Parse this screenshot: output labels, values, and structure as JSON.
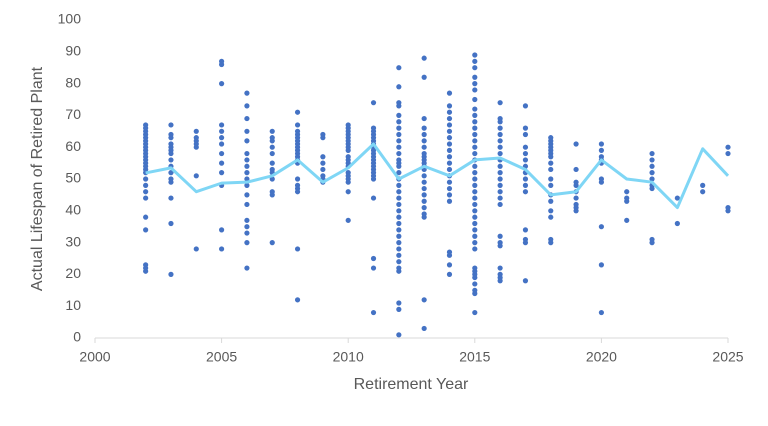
{
  "chart_data": {
    "type": "scatter",
    "x_label": "Retirement Year",
    "y_label": "Actual Lifespan of Retired Plant",
    "xlim": [
      2000,
      2025
    ],
    "xticks": [
      2000,
      2005,
      2010,
      2015,
      2020,
      2025
    ],
    "ylim": [
      0,
      100
    ],
    "yticks": [
      0,
      10,
      20,
      30,
      40,
      50,
      60,
      70,
      80,
      90,
      100
    ],
    "grid": false,
    "series": [
      {
        "type": "scatter",
        "color": "#4472c4",
        "x": [
          2002,
          2002,
          2002,
          2002,
          2002,
          2002,
          2002,
          2002,
          2002,
          2002,
          2002,
          2002,
          2002,
          2002,
          2002,
          2002,
          2002,
          2002,
          2002,
          2002,
          2002,
          2002,
          2002,
          2002,
          2002,
          2003,
          2003,
          2003,
          2003,
          2003,
          2003,
          2003,
          2003,
          2003,
          2003,
          2003,
          2003,
          2003,
          2003,
          2003,
          2004,
          2004,
          2004,
          2004,
          2004,
          2004,
          2004,
          2005,
          2005,
          2005,
          2005,
          2005,
          2005,
          2005,
          2005,
          2005,
          2005,
          2005,
          2005,
          2005,
          2006,
          2006,
          2006,
          2006,
          2006,
          2006,
          2006,
          2006,
          2006,
          2006,
          2006,
          2006,
          2006,
          2006,
          2006,
          2006,
          2006,
          2006,
          2007,
          2007,
          2007,
          2007,
          2007,
          2007,
          2007,
          2007,
          2007,
          2007,
          2007,
          2007,
          2008,
          2008,
          2008,
          2008,
          2008,
          2008,
          2008,
          2008,
          2008,
          2008,
          2008,
          2008,
          2008,
          2008,
          2008,
          2008,
          2008,
          2008,
          2008,
          2009,
          2009,
          2009,
          2009,
          2009,
          2009,
          2009,
          2009,
          2010,
          2010,
          2010,
          2010,
          2010,
          2010,
          2010,
          2010,
          2010,
          2010,
          2010,
          2010,
          2010,
          2010,
          2010,
          2010,
          2010,
          2010,
          2010,
          2011,
          2011,
          2011,
          2011,
          2011,
          2011,
          2011,
          2011,
          2011,
          2011,
          2011,
          2011,
          2011,
          2011,
          2011,
          2011,
          2011,
          2011,
          2011,
          2011,
          2011,
          2011,
          2012,
          2012,
          2012,
          2012,
          2012,
          2012,
          2012,
          2012,
          2012,
          2012,
          2012,
          2012,
          2012,
          2012,
          2012,
          2012,
          2012,
          2012,
          2012,
          2012,
          2012,
          2012,
          2012,
          2012,
          2012,
          2012,
          2012,
          2012,
          2012,
          2012,
          2012,
          2012,
          2012,
          2012,
          2013,
          2013,
          2013,
          2013,
          2013,
          2013,
          2013,
          2013,
          2013,
          2013,
          2013,
          2013,
          2013,
          2013,
          2013,
          2013,
          2013,
          2013,
          2013,
          2013,
          2013,
          2013,
          2013,
          2014,
          2014,
          2014,
          2014,
          2014,
          2014,
          2014,
          2014,
          2014,
          2014,
          2014,
          2014,
          2014,
          2014,
          2014,
          2014,
          2014,
          2014,
          2014,
          2014,
          2014,
          2015,
          2015,
          2015,
          2015,
          2015,
          2015,
          2015,
          2015,
          2015,
          2015,
          2015,
          2015,
          2015,
          2015,
          2015,
          2015,
          2015,
          2015,
          2015,
          2015,
          2015,
          2015,
          2015,
          2015,
          2015,
          2015,
          2015,
          2015,
          2015,
          2015,
          2015,
          2015,
          2015,
          2015,
          2015,
          2015,
          2015,
          2015,
          2016,
          2016,
          2016,
          2016,
          2016,
          2016,
          2016,
          2016,
          2016,
          2016,
          2016,
          2016,
          2016,
          2016,
          2016,
          2016,
          2016,
          2016,
          2016,
          2016,
          2016,
          2016,
          2016,
          2017,
          2017,
          2017,
          2017,
          2017,
          2017,
          2017,
          2017,
          2017,
          2017,
          2017,
          2017,
          2017,
          2017,
          2017,
          2018,
          2018,
          2018,
          2018,
          2018,
          2018,
          2018,
          2018,
          2018,
          2018,
          2018,
          2018,
          2018,
          2018,
          2018,
          2018,
          2018,
          2019,
          2019,
          2019,
          2019,
          2019,
          2019,
          2019,
          2019,
          2019,
          2020,
          2020,
          2020,
          2020,
          2020,
          2020,
          2020,
          2020,
          2020,
          2020,
          2021,
          2021,
          2021,
          2021,
          2022,
          2022,
          2022,
          2022,
          2022,
          2022,
          2022,
          2022,
          2022,
          2023,
          2023,
          2024,
          2024,
          2025,
          2025,
          2025,
          2025
        ],
        "values": [
          67,
          66,
          65,
          64,
          63,
          62,
          61,
          60,
          59,
          58,
          57,
          56,
          55,
          54,
          53,
          52,
          50,
          48,
          46,
          44,
          38,
          34,
          23,
          22,
          21,
          67,
          64,
          63,
          61,
          60,
          59,
          58,
          56,
          54,
          52,
          50,
          49,
          44,
          36,
          20,
          65,
          63,
          62,
          61,
          60,
          51,
          28,
          87,
          86,
          80,
          67,
          65,
          63,
          61,
          58,
          55,
          52,
          48,
          34,
          28,
          77,
          73,
          69,
          65,
          62,
          58,
          56,
          54,
          52,
          50,
          48,
          45,
          42,
          37,
          35,
          33,
          30,
          22,
          65,
          63,
          62,
          60,
          58,
          55,
          53,
          52,
          50,
          46,
          45,
          30,
          71,
          67,
          65,
          64,
          63,
          62,
          61,
          60,
          59,
          58,
          57,
          56,
          55,
          50,
          48,
          47,
          46,
          28,
          12,
          64,
          63,
          57,
          55,
          53,
          51,
          50,
          49,
          67,
          66,
          65,
          64,
          63,
          62,
          61,
          60,
          59,
          57,
          56,
          55,
          54,
          52,
          51,
          50,
          49,
          46,
          37,
          74,
          66,
          65,
          64,
          63,
          62,
          61,
          60,
          59,
          58,
          57,
          56,
          55,
          54,
          53,
          52,
          51,
          50,
          44,
          25,
          22,
          8,
          85,
          79,
          74,
          73,
          70,
          68,
          66,
          64,
          62,
          60,
          58,
          56,
          55,
          54,
          52,
          50,
          48,
          46,
          44,
          42,
          40,
          38,
          36,
          34,
          32,
          30,
          28,
          26,
          24,
          22,
          21,
          11,
          9,
          1,
          88,
          82,
          69,
          66,
          64,
          62,
          60,
          58,
          57,
          56,
          55,
          54,
          53,
          51,
          49,
          47,
          45,
          43,
          41,
          39,
          38,
          12,
          3,
          77,
          73,
          71,
          69,
          67,
          65,
          63,
          61,
          59,
          57,
          55,
          53,
          51,
          49,
          47,
          45,
          43,
          27,
          26,
          23,
          20,
          89,
          87,
          85,
          82,
          80,
          78,
          75,
          72,
          70,
          68,
          66,
          64,
          62,
          60,
          58,
          56,
          54,
          52,
          50,
          48,
          46,
          44,
          42,
          40,
          38,
          36,
          34,
          32,
          30,
          28,
          22,
          21,
          20,
          19,
          17,
          15,
          14,
          8,
          74,
          69,
          68,
          66,
          64,
          62,
          60,
          58,
          56,
          54,
          52,
          50,
          48,
          46,
          44,
          42,
          32,
          30,
          29,
          22,
          20,
          19,
          18,
          73,
          66,
          64,
          60,
          58,
          56,
          54,
          52,
          50,
          48,
          46,
          34,
          31,
          30,
          18,
          63,
          62,
          61,
          60,
          59,
          58,
          57,
          55,
          53,
          50,
          48,
          45,
          43,
          40,
          38,
          31,
          30,
          61,
          53,
          49,
          48,
          46,
          44,
          42,
          41,
          40,
          61,
          59,
          57,
          56,
          55,
          50,
          49,
          35,
          23,
          8,
          46,
          44,
          43,
          37,
          58,
          56,
          54,
          52,
          50,
          48,
          47,
          31,
          30,
          44,
          36,
          48,
          46,
          60,
          58,
          41,
          40
        ]
      },
      {
        "type": "line",
        "color": "#7fd6f5",
        "x": [
          2002,
          2003,
          2004,
          2005,
          2006,
          2007,
          2008,
          2009,
          2010,
          2011,
          2012,
          2013,
          2014,
          2015,
          2016,
          2017,
          2018,
          2019,
          2020,
          2021,
          2022,
          2023,
          2024,
          2025
        ],
        "values": [
          51.9,
          53.5,
          46,
          48.7,
          49,
          51,
          56,
          49,
          53.5,
          61,
          50,
          54,
          51,
          56,
          56.6,
          53,
          45,
          46,
          56,
          50,
          49,
          41,
          59.5,
          51
        ]
      }
    ]
  }
}
